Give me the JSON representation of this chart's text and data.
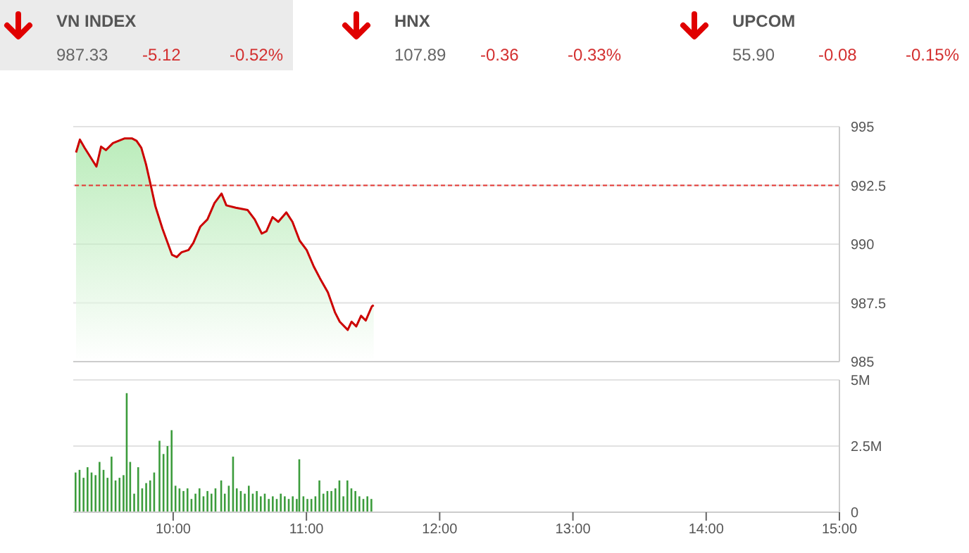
{
  "chart_data": [
    {
      "type": "other",
      "annotations": [
        "VN INDEX",
        "987.33",
        "-5.12",
        "-0.52%",
        "HNX",
        "107.89",
        "-0.36",
        "-0.33%",
        "UPCOM",
        "55.90",
        "-0.08",
        "-0.15%"
      ]
    },
    {
      "type": "area",
      "tick_labels": "y",
      "grid": "y",
      "xlim": [
        9.25,
        15
      ],
      "ylim": [
        985,
        995
      ],
      "yticks": [
        985,
        987.5,
        990,
        992.5,
        995
      ],
      "ref_lines": [
        {
          "axis": "y",
          "value": 992.5,
          "color": "#e53935",
          "line_style": "dashed"
        }
      ],
      "x": [
        9.271,
        9.3,
        9.335,
        9.424,
        9.459,
        9.495,
        9.548,
        9.637,
        9.69,
        9.725,
        9.761,
        9.796,
        9.832,
        9.867,
        9.92,
        9.991,
        10.027,
        10.062,
        10.115,
        10.151,
        10.204,
        10.257,
        10.31,
        10.363,
        10.399,
        10.47,
        10.559,
        10.612,
        10.665,
        10.7,
        10.746,
        10.789,
        10.849,
        10.895,
        10.949,
        11.002,
        11.055,
        11.101,
        11.161,
        11.214,
        11.25,
        11.31,
        11.339,
        11.374,
        11.41,
        11.445,
        11.491,
        11.505
      ],
      "series": [
        {
          "color": "#cc0000",
          "values": [
            993.9,
            994.45,
            994.1,
            993.3,
            994.15,
            994.0,
            994.3,
            994.5,
            994.5,
            994.4,
            994.1,
            993.4,
            992.5,
            991.6,
            990.65,
            989.55,
            989.45,
            989.65,
            989.75,
            990.05,
            990.75,
            991.05,
            991.75,
            992.15,
            991.65,
            991.55,
            991.45,
            991.05,
            990.45,
            990.55,
            991.15,
            990.95,
            991.35,
            990.95,
            990.15,
            989.75,
            989.05,
            988.55,
            987.95,
            987.1,
            986.7,
            986.35,
            986.7,
            986.5,
            986.95,
            986.75,
            987.35,
            987.4
          ]
        }
      ]
    },
    {
      "type": "bar",
      "grid": "y",
      "xlim": [
        9.25,
        15
      ],
      "xticks": [
        {
          "value": 10,
          "label": "10:00"
        },
        {
          "value": 11,
          "label": "11:00"
        },
        {
          "value": 12,
          "label": "12:00"
        },
        {
          "value": 13,
          "label": "13:00"
        },
        {
          "value": 14,
          "label": "14:00"
        },
        {
          "value": 15,
          "label": "15:00"
        }
      ],
      "ylim": [
        0,
        5
      ],
      "yticks": [
        0,
        {
          "value": 2.5,
          "label": "2.5M"
        },
        {
          "value": 5,
          "label": "5M"
        }
      ],
      "x": [
        9.27,
        9.3,
        9.33,
        9.36,
        9.39,
        9.42,
        9.45,
        9.48,
        9.51,
        9.54,
        9.57,
        9.6,
        9.63,
        9.654,
        9.68,
        9.71,
        9.74,
        9.77,
        9.8,
        9.83,
        9.86,
        9.9,
        9.93,
        9.96,
        9.991,
        10.02,
        10.05,
        10.08,
        10.11,
        10.14,
        10.17,
        10.2,
        10.23,
        10.26,
        10.29,
        10.32,
        10.363,
        10.39,
        10.42,
        10.452,
        10.48,
        10.51,
        10.54,
        10.57,
        10.6,
        10.63,
        10.66,
        10.69,
        10.72,
        10.75,
        10.78,
        10.81,
        10.84,
        10.87,
        10.9,
        10.93,
        10.949,
        10.98,
        11.01,
        11.04,
        11.07,
        11.1,
        11.13,
        11.16,
        11.19,
        11.22,
        11.25,
        11.28,
        11.31,
        11.34,
        11.37,
        11.4,
        11.43,
        11.46,
        11.49
      ],
      "series": [
        {
          "color": "#3c9c3c",
          "values": [
            1.5,
            1.6,
            1.3,
            1.7,
            1.5,
            1.4,
            1.9,
            1.6,
            1.3,
            2.1,
            1.2,
            1.3,
            1.4,
            4.5,
            1.9,
            0.7,
            1.7,
            0.9,
            1.1,
            1.2,
            1.5,
            2.7,
            2.2,
            2.5,
            3.1,
            1.0,
            0.9,
            0.8,
            0.9,
            0.5,
            0.7,
            0.9,
            0.6,
            0.8,
            0.7,
            0.9,
            1.2,
            0.7,
            1.0,
            2.1,
            0.9,
            0.8,
            0.7,
            1.0,
            0.7,
            0.8,
            0.6,
            0.7,
            0.5,
            0.6,
            0.5,
            0.7,
            0.6,
            0.5,
            0.6,
            0.5,
            2.0,
            0.6,
            0.5,
            0.5,
            0.6,
            1.2,
            0.7,
            0.8,
            0.8,
            0.9,
            1.2,
            0.6,
            1.2,
            0.9,
            0.8,
            0.6,
            0.5,
            0.6,
            0.5
          ]
        }
      ]
    }
  ]
}
